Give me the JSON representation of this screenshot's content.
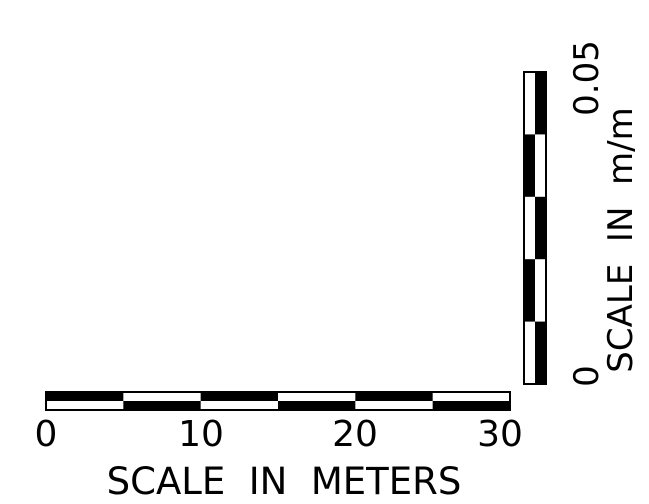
{
  "horizontal_scale": {
    "title": "SCALE  IN  METERS",
    "labels": [
      "0",
      "10",
      "20",
      "30"
    ],
    "min": 0,
    "max": 30,
    "segments": 6
  },
  "vertical_scale": {
    "title": "SCALE  IN  m/m",
    "labels": [
      "0",
      "0.05"
    ],
    "min": 0,
    "max": 0.05,
    "segments": 5
  },
  "colors": {
    "ink": "#000000",
    "paper": "#ffffff"
  }
}
